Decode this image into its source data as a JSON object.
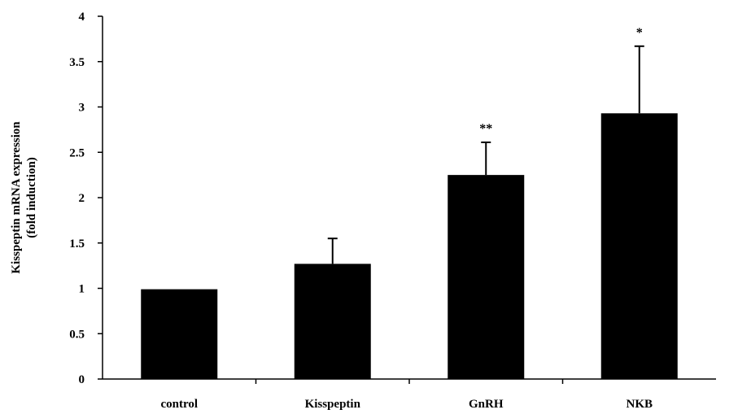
{
  "chart_data": {
    "type": "bar",
    "title": "",
    "xlabel": "",
    "ylabel": [
      "Kisspeptin mRNA expression",
      "(fold induction)"
    ],
    "categories": [
      "control",
      "Kisspeptin",
      "GnRH",
      "NKB"
    ],
    "values": [
      0.99,
      1.27,
      2.25,
      2.93
    ],
    "error_upper": [
      0,
      0.28,
      0.36,
      0.74
    ],
    "annotations": [
      "",
      "",
      "**",
      "*"
    ],
    "ylim": [
      0,
      4
    ],
    "yticks": [
      "0",
      "0.5",
      "1",
      "1.5",
      "2",
      "2.5",
      "3",
      "3.5",
      "4"
    ],
    "grid": false,
    "legend": "none",
    "bar_color": "#000000"
  }
}
